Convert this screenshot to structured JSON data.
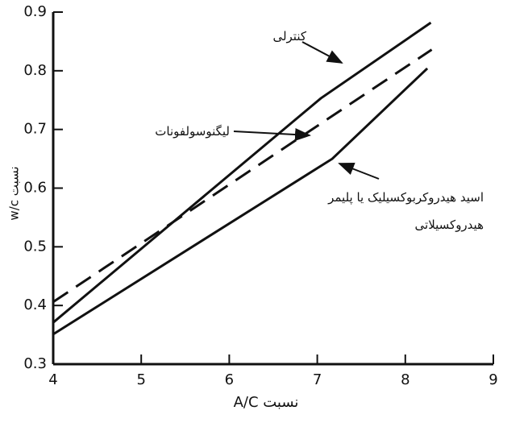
{
  "chart_data": {
    "type": "line",
    "x_label": "نسبت A/C",
    "y_label": "نسبت w/c",
    "xlim": [
      4,
      9
    ],
    "xticks": [
      4,
      5,
      6,
      7,
      8,
      9
    ],
    "ylim": [
      0.3,
      0.9
    ],
    "yticks": [
      0.3,
      0.4,
      0.5,
      0.6,
      0.7,
      0.8,
      0.9
    ],
    "series": [
      {
        "name": "کنترلی",
        "color": "#111111",
        "dash": false,
        "x": [
          4,
          7.04,
          8.29
        ],
        "values": [
          0.371,
          0.753,
          0.882
        ]
      },
      {
        "name": "لیگنوسولفونات",
        "color": "#111111",
        "dash": true,
        "x": [
          4,
          8.3
        ],
        "values": [
          0.406,
          0.836
        ]
      },
      {
        "name": "اسید هیدروکربوکسیلیک یا پلیمر هیدروکسیلاتی",
        "color": "#111111",
        "dash": false,
        "x": [
          4,
          7.17,
          8.25
        ],
        "values": [
          0.351,
          0.65,
          0.804
        ]
      }
    ]
  }
}
